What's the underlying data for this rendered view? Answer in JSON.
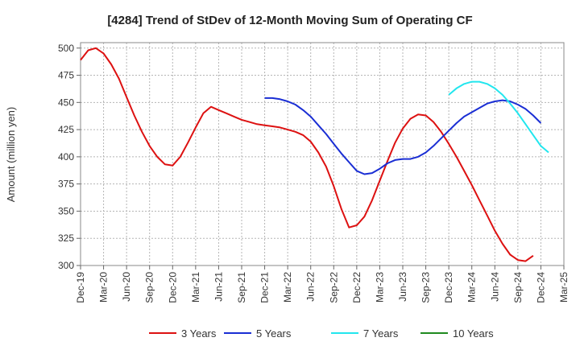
{
  "chart_data": {
    "type": "line",
    "title": "[4284]  Trend of StDev of 12-Month Moving Sum of Operating CF",
    "ylabel": "Amount (million yen)",
    "xlabel": "",
    "ylim": [
      300,
      505
    ],
    "yticks": [
      300,
      325,
      350,
      375,
      400,
      425,
      450,
      475,
      500
    ],
    "xtick_labels": [
      "Dec-19",
      "Mar-20",
      "Jun-20",
      "Sep-20",
      "Dec-20",
      "Mar-21",
      "Jun-21",
      "Sep-21",
      "Dec-21",
      "Mar-22",
      "Jun-22",
      "Sep-22",
      "Dec-22",
      "Mar-23",
      "Jun-23",
      "Sep-23",
      "Dec-23",
      "Mar-24",
      "Jun-24",
      "Sep-24",
      "Dec-24",
      "Mar-25"
    ],
    "grid": true,
    "legend_position": "bottom",
    "series": [
      {
        "name": "3 Years",
        "color": "#dd1111",
        "start": "Dec-19",
        "values": [
          489,
          498,
          500,
          495,
          485,
          472,
          455,
          438,
          423,
          410,
          400,
          393,
          392,
          400,
          413,
          427,
          440,
          446,
          443,
          440,
          437,
          434,
          432,
          430,
          429,
          428,
          427,
          425,
          423,
          420,
          414,
          404,
          391,
          373,
          352,
          335,
          337,
          345,
          360,
          378,
          396,
          413,
          426,
          435,
          439,
          438,
          432,
          423,
          412,
          400,
          387,
          374,
          360,
          346,
          332,
          320,
          310,
          305,
          304,
          309
        ]
      },
      {
        "name": "5 Years",
        "color": "#1a2ed4",
        "start": "Dec-21",
        "values": [
          454,
          454,
          453,
          451,
          448,
          443,
          437,
          429,
          421,
          412,
          403,
          395,
          387,
          384,
          385,
          389,
          394,
          397,
          398,
          398,
          400,
          404,
          410,
          417,
          424,
          431,
          437,
          441,
          445,
          449,
          451,
          452,
          451,
          448,
          444,
          438,
          431
        ]
      },
      {
        "name": "7 Years",
        "color": "#22e6ee",
        "start": "Dec-23",
        "values": [
          457,
          463,
          467,
          469,
          469,
          467,
          463,
          457,
          449,
          440,
          430,
          420,
          410,
          404
        ]
      },
      {
        "name": "10 Years",
        "color": "#1f8a1f",
        "start": "",
        "values": []
      }
    ]
  }
}
